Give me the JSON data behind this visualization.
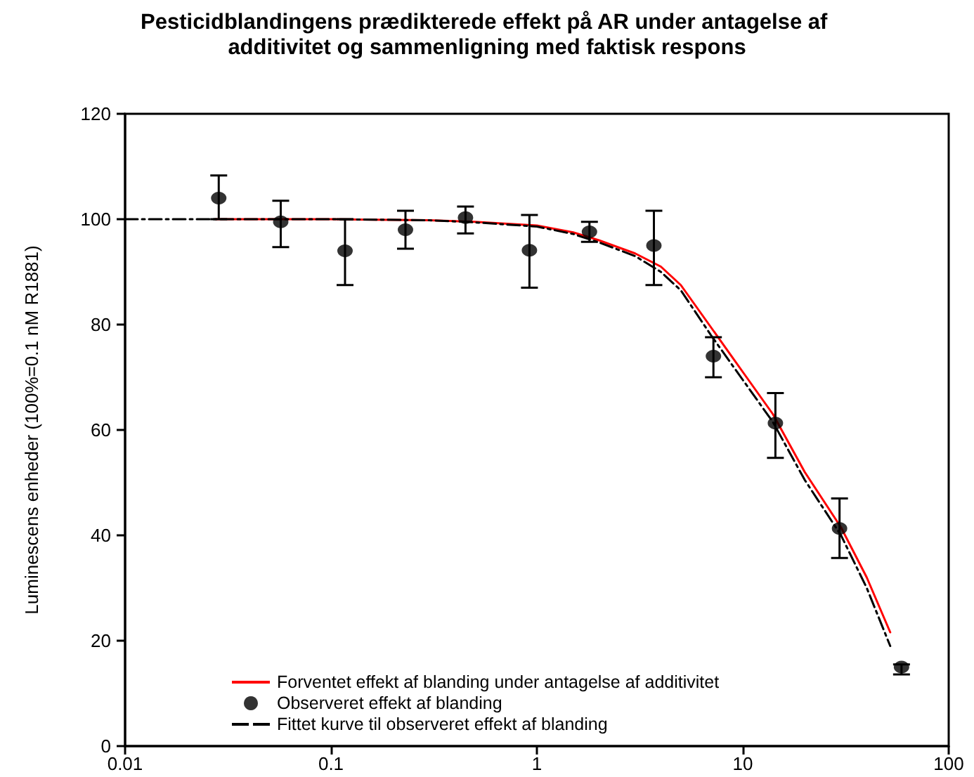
{
  "chart_data": {
    "type": "line",
    "title": "Pesticidblandingens prædikterede effekt på AR under antagelse af additivitet og sammenligning med faktisk respons",
    "ylabel": "Luminescens enheder (100%=0.1 nM R1881)",
    "log": "x",
    "xlim": [
      0.01,
      100
    ],
    "xticks": [
      0.01,
      0.1,
      1,
      10,
      100
    ],
    "ylim": [
      0,
      120
    ],
    "yticks": [
      0,
      20,
      40,
      60,
      80,
      100,
      120
    ],
    "grid": false,
    "legend": "bottom left",
    "series": [
      {
        "name": "Forventet effekt af blanding under antagelse af additivitet",
        "type": "line",
        "color": "#ff0000",
        "line_style": "solid",
        "marker": "none",
        "x": [
          0.0275,
          0.1,
          0.3,
          0.5,
          1,
          1.5,
          2,
          3,
          4,
          5,
          7,
          10,
          14,
          20,
          30,
          40,
          52
        ],
        "values": [
          100,
          100,
          99.8,
          99.5,
          98.8,
          97.5,
          96,
          93.5,
          91,
          87.5,
          79.5,
          71,
          63,
          52,
          41.5,
          32,
          21.6
        ]
      },
      {
        "name": "Observeret effekt af blanding",
        "type": "scatter",
        "color": "#000000",
        "marker": "circle",
        "x": [
          0.0285,
          0.057,
          0.117,
          0.23,
          0.45,
          0.92,
          1.8,
          3.7,
          7.2,
          14.4,
          29.5,
          59
        ],
        "values": [
          104,
          99.5,
          94,
          98,
          100.3,
          94.1,
          97.6,
          95,
          74,
          61.3,
          41.3,
          15
        ],
        "errors": [
          [
            100,
            108.3
          ],
          [
            94.7,
            103.5
          ],
          [
            87.5,
            100
          ],
          [
            94.4,
            101.6
          ],
          [
            97.3,
            102.4
          ],
          [
            87,
            100.8
          ],
          [
            95.7,
            99.5
          ],
          [
            87.5,
            101.6
          ],
          [
            70,
            77.6
          ],
          [
            54.7,
            67
          ],
          [
            35.7,
            47
          ],
          [
            13.6,
            15.5
          ]
        ]
      },
      {
        "name": "Fittet kurve til observeret effekt af blanding",
        "type": "line",
        "color": "#000000",
        "line_style": "dashed",
        "marker": "none",
        "x": [
          0.01,
          0.1,
          0.3,
          0.5,
          1,
          1.5,
          2,
          3,
          4,
          5,
          7,
          10,
          14,
          20,
          30,
          40,
          52
        ],
        "values": [
          100,
          100,
          99.8,
          99.4,
          98.6,
          97.2,
          95.6,
          93,
          90,
          86.5,
          78,
          69.5,
          61.5,
          50.5,
          40,
          30,
          19
        ]
      }
    ]
  }
}
